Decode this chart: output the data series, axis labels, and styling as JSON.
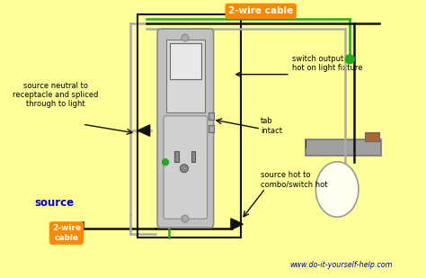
{
  "bg_color": "#FFFF99",
  "wire_black": "#111111",
  "wire_white": "#aaaaaa",
  "wire_green": "#22aa22",
  "orange_label_color": "#FF8800",
  "blue_text_color": "#0000CC",
  "source_label": "source",
  "cable_label": "2-wire\ncable",
  "top_cable_label": "2-wire cable",
  "label1": "source neutral to\nreceptacle and spliced\nthrough to light",
  "label2": "switch output to\nhot on light fixture",
  "label3": "tab\nintact",
  "label4": "source hot to\ncombo/switch hot",
  "website": "www.do-it-yourself-help.com"
}
